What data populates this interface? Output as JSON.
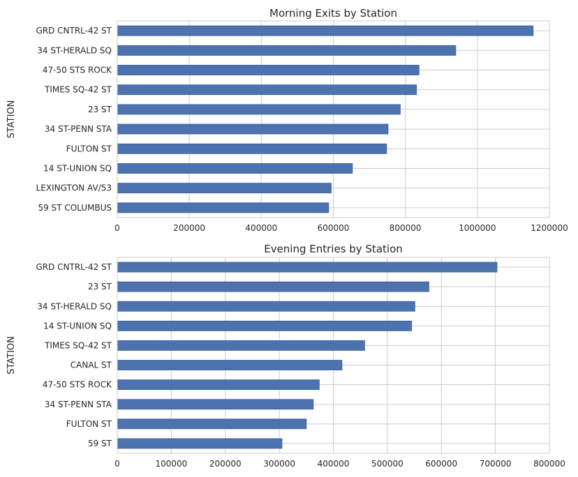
{
  "chart_data": [
    {
      "type": "bar",
      "orientation": "horizontal",
      "title": "Morning Exits by Station",
      "ylabel": "STATION",
      "xlabel": "",
      "xlim": [
        0,
        1200000
      ],
      "xticks": [
        "0",
        "200000",
        "400000",
        "600000",
        "800000",
        "1000000",
        "1200000"
      ],
      "grid": true,
      "bar_color": "#4c72b0",
      "categories": [
        "59 ST COLUMBUS",
        "LEXINGTON AV/53",
        "14 ST-UNION SQ",
        "FULTON ST",
        "34 ST-PENN STA",
        "23 ST",
        "TIMES SQ-42 ST",
        "47-50 STS ROCK",
        "34 ST-HERALD SQ",
        "GRD CNTRL-42 ST"
      ],
      "values": [
        587000,
        594000,
        653000,
        748000,
        752000,
        786000,
        831000,
        838000,
        940000,
        1155000
      ]
    },
    {
      "type": "bar",
      "orientation": "horizontal",
      "title": "Evening Entries by Station",
      "ylabel": "STATION",
      "xlabel": "",
      "xlim": [
        0,
        800000
      ],
      "xticks": [
        "0",
        "100000",
        "200000",
        "300000",
        "400000",
        "500000",
        "600000",
        "700000",
        "800000"
      ],
      "grid": true,
      "bar_color": "#4c72b0",
      "categories": [
        "59 ST",
        "FULTON ST",
        "34 ST-PENN STA",
        "47-50 STS ROCK",
        "CANAL ST",
        "TIMES SQ-42 ST",
        "14 ST-UNION SQ",
        "34 ST-HERALD SQ",
        "23 ST",
        "GRD CNTRL-42 ST"
      ],
      "values": [
        305000,
        350000,
        363000,
        374000,
        416000,
        458000,
        545000,
        551000,
        577000,
        703000
      ]
    }
  ]
}
